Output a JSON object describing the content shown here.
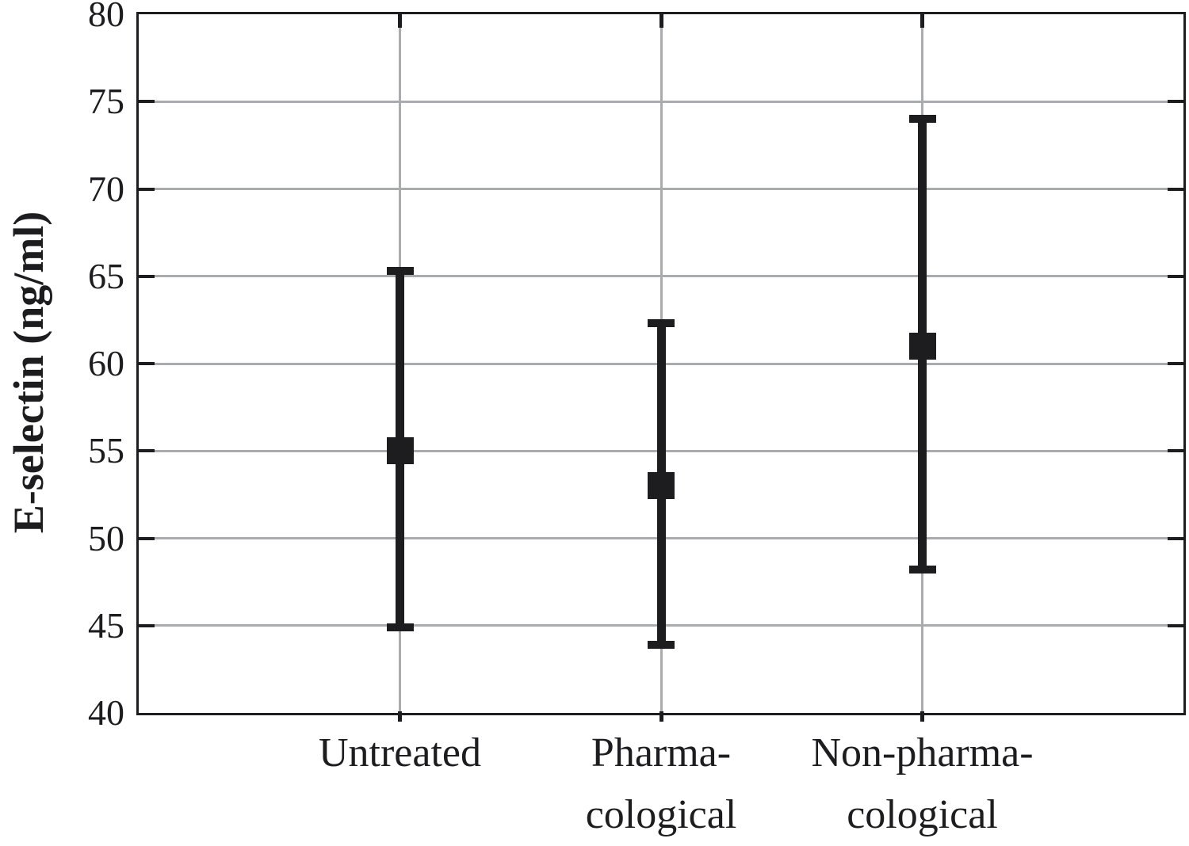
{
  "chart_data": {
    "type": "errorbar",
    "title": "",
    "xlabel": "",
    "ylabel": "E-selectin (ng/ml)",
    "ylim": [
      40,
      80
    ],
    "ytick_interval": 5,
    "yticks": [
      80,
      75,
      70,
      65,
      60,
      55,
      50,
      45,
      40
    ],
    "grid": {
      "horizontal": true,
      "vertical_at_categories": true,
      "color": "#a9abae"
    },
    "legend": "none",
    "categories": [
      {
        "label": "Untreated",
        "lines": [
          "Untreated"
        ]
      },
      {
        "label": "Pharmacological",
        "lines": [
          "Pharma-",
          "cological"
        ]
      },
      {
        "label": "Non-pharmacological",
        "lines": [
          "Non-pharma-",
          "cological"
        ]
      }
    ],
    "series": [
      {
        "name": "E-selectin mean with error bars",
        "marker": "filled-square",
        "points": [
          {
            "category": "Untreated",
            "mean": 55.0,
            "upper": 65.3,
            "lower": 44.9
          },
          {
            "category": "Pharmacological",
            "mean": 53.0,
            "upper": 62.3,
            "lower": 43.9
          },
          {
            "category": "Non-pharmacological",
            "mean": 61.0,
            "upper": 74.0,
            "lower": 48.2
          }
        ]
      }
    ],
    "colors": {
      "marker": "#1d1d1f",
      "axis": "#1d1d1f",
      "grid": "#a9abae",
      "text": "#1d1d1f",
      "background": "#ffffff"
    }
  }
}
